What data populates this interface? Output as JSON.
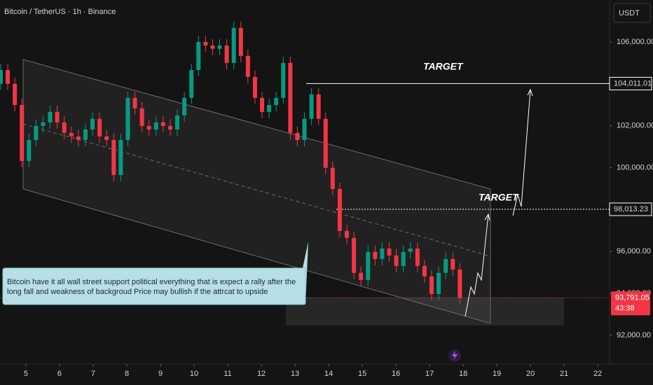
{
  "chart_data": {
    "type": "candlestick",
    "title": "Bitcoin / TetherUS · 1h · Binance",
    "currency": "USDT",
    "x": [
      4.25,
      4.46,
      4.67,
      4.88,
      5.09,
      5.3,
      5.51,
      5.72,
      5.93,
      6.14,
      6.35,
      6.56,
      6.77,
      6.98,
      7.19,
      7.4,
      7.61,
      7.82,
      8.03,
      8.24,
      8.45,
      8.66,
      8.87,
      9.08,
      9.29,
      9.5,
      9.71,
      9.92,
      10.13,
      10.34,
      10.55,
      10.76,
      10.97,
      11.18,
      11.39,
      11.6,
      11.81,
      12.02,
      12.23,
      12.44,
      12.65,
      12.86,
      13.07,
      13.28,
      13.49,
      13.7,
      13.91,
      14.12,
      14.33,
      14.54,
      14.75,
      14.96,
      15.17,
      15.38,
      15.59,
      15.8,
      16.01,
      16.22,
      16.43,
      16.64,
      16.85,
      17.06,
      17.27,
      17.48,
      17.69,
      17.9
    ],
    "open": [
      104000,
      104660,
      104000,
      102990,
      100320,
      101320,
      101990,
      102160,
      102660,
      102160,
      101660,
      101490,
      101320,
      101820,
      102330,
      101490,
      101320,
      99650,
      101320,
      103330,
      102830,
      101990,
      101820,
      102160,
      101990,
      101820,
      102490,
      103330,
      104660,
      106000,
      105830,
      105670,
      105830,
      105000,
      106670,
      105330,
      104330,
      103330,
      102660,
      102990,
      103330,
      105000,
      101660,
      101320,
      102330,
      103500,
      102330,
      99990,
      98980,
      96980,
      96650,
      94980,
      94640,
      95980,
      95640,
      96140,
      95810,
      95310,
      95980,
      96140,
      95310,
      94810,
      93970,
      94980,
      95640,
      95140
    ],
    "high": [
      104960,
      104960,
      104300,
      103290,
      101620,
      102290,
      102460,
      102960,
      102960,
      102460,
      101960,
      101790,
      102120,
      102630,
      102630,
      101790,
      101620,
      101620,
      103630,
      103630,
      103130,
      102290,
      102460,
      102460,
      102290,
      102790,
      103630,
      104960,
      106300,
      106300,
      106130,
      106130,
      106130,
      106970,
      106970,
      105630,
      104630,
      103630,
      103290,
      103630,
      105300,
      105300,
      101960,
      102630,
      103800,
      103800,
      102630,
      100290,
      99280,
      97280,
      96950,
      95280,
      96280,
      96280,
      96440,
      96440,
      96110,
      96280,
      96440,
      96440,
      95610,
      95110,
      95280,
      95940,
      95940,
      95440
    ],
    "low": [
      103700,
      103700,
      102690,
      100020,
      100020,
      101020,
      101690,
      101860,
      101860,
      101360,
      101190,
      101020,
      101020,
      101520,
      101190,
      101020,
      99350,
      99350,
      101020,
      102530,
      101690,
      101520,
      101520,
      101690,
      101520,
      101520,
      102190,
      103030,
      104360,
      105530,
      105370,
      105370,
      104700,
      104700,
      105030,
      104030,
      103030,
      102360,
      102360,
      102690,
      103030,
      101360,
      101020,
      101020,
      102030,
      102030,
      99690,
      98680,
      96680,
      96350,
      94680,
      94340,
      94340,
      95340,
      95340,
      95510,
      95010,
      95010,
      95680,
      95010,
      94510,
      93670,
      93670,
      94680,
      94840,
      93490
    ],
    "close": [
      104660,
      104000,
      102990,
      100320,
      101320,
      101990,
      102160,
      102660,
      102160,
      101660,
      101490,
      101320,
      101820,
      102330,
      101490,
      101320,
      99650,
      101320,
      103330,
      102830,
      101990,
      101820,
      102160,
      101990,
      101820,
      102490,
      103330,
      104660,
      106000,
      105830,
      105670,
      105830,
      105000,
      106670,
      105330,
      104330,
      103330,
      102660,
      102990,
      103330,
      105000,
      101660,
      101320,
      102330,
      103500,
      102330,
      99990,
      98980,
      96980,
      96650,
      94980,
      94640,
      95980,
      95640,
      96140,
      95810,
      95310,
      95980,
      96140,
      95310,
      94810,
      93970,
      94980,
      95640,
      95140,
      93790
    ],
    "up_color": "#089981",
    "down_color": "#f23645",
    "xlim": [
      4.23,
      22.35
    ],
    "xticks": [
      5,
      6,
      7,
      8,
      9,
      10,
      11,
      12,
      13,
      14,
      15,
      16,
      17,
      18,
      19,
      20,
      21,
      22
    ],
    "ylim": [
      90630,
      108000
    ],
    "yticks": [
      {
        "value": 92000,
        "label": "92,000.00"
      },
      {
        "value": 94000,
        "label": "94,000.00"
      },
      {
        "value": 96000,
        "label": "96,000.00"
      },
      {
        "value": 100000,
        "label": "100,000.00"
      },
      {
        "value": 102000,
        "label": "102,000.00"
      },
      {
        "value": 106000,
        "label": "106,000.00"
      }
    ],
    "levels": [
      {
        "value": 104011.01,
        "label": "104,011.01"
      },
      {
        "value": 98013.23,
        "label": "98,013.23"
      }
    ],
    "targets": [
      "TARGET",
      "TARGET"
    ],
    "last_price": {
      "value": 93791.05,
      "label": "93,791.05"
    },
    "countdown": "43:38",
    "note": [
      "Bitcoin have it all wall street support political everything that is expect a rally after the",
      "long fall and weakness of backgroud Price may bullish if the attrcat to upside"
    ]
  }
}
